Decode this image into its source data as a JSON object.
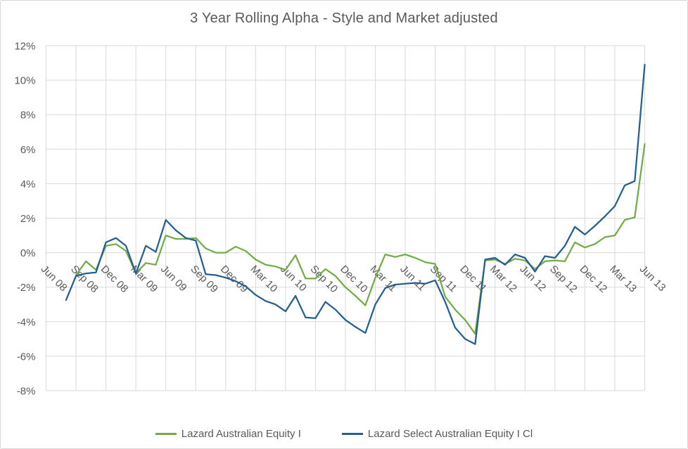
{
  "chart": {
    "title": "3 Year Rolling Alpha - Style and Market adjusted"
  },
  "legend": {
    "items": [
      {
        "label": "Lazard Australian Equity I",
        "color": "#70AD47"
      },
      {
        "label": "Lazard Select Australian Equity I Cl",
        "color": "#255E91"
      }
    ]
  },
  "chart_data": {
    "type": "line",
    "title": "3 Year Rolling Alpha - Style and Market adjusted",
    "interval": "monthly",
    "start_month": "Jun 08",
    "end_month": "Jun 13",
    "n_points": 61,
    "xtick_labels": [
      "Jun 08",
      "Sep 08",
      "Dec 08",
      "Mar 09",
      "Jun 09",
      "Sep 09",
      "Dec 09",
      "Mar 10",
      "Jun 10",
      "Sep 10",
      "Dec 10",
      "Mar 11",
      "Jun 11",
      "Sep 11",
      "Dec 11",
      "Mar 12",
      "Jun 12",
      "Sep 12",
      "Dec 12",
      "Mar 13",
      "Jun 13"
    ],
    "xticks_per_point": 3,
    "yticks": [
      12,
      10,
      8,
      6,
      4,
      2,
      0,
      -2,
      -4,
      -6,
      -8
    ],
    "ytick_suffix": "%",
    "ylim": [
      -8,
      12
    ],
    "grid": true,
    "legend_position": "bottom",
    "axis_text_color": "#595959",
    "grid_color": "#D9D9D9",
    "series": [
      {
        "name": "Lazard Australian Equity I",
        "color": "#70AD47",
        "values": [
          null,
          null,
          null,
          -1.3,
          -0.5,
          -1.0,
          0.4,
          0.5,
          0.1,
          -1.2,
          -0.6,
          -0.7,
          1.0,
          0.8,
          0.8,
          0.85,
          0.25,
          0.0,
          0.0,
          0.35,
          0.1,
          -0.4,
          -0.7,
          -0.8,
          -1.0,
          -0.15,
          -1.5,
          -1.5,
          -0.95,
          -1.35,
          -2.0,
          -2.5,
          -3.05,
          -1.45,
          -0.1,
          -0.25,
          -0.1,
          -0.3,
          -0.55,
          -0.65,
          -2.55,
          -3.3,
          -3.9,
          -4.7,
          -0.45,
          -0.4,
          -0.65,
          -0.35,
          -0.45,
          -0.95,
          -0.5,
          -0.45,
          -0.5,
          0.6,
          0.3,
          0.5,
          0.9,
          1.0,
          1.9,
          2.05,
          6.3
        ]
      },
      {
        "name": "Lazard Select Australian Equity I Cl",
        "color": "#255E91",
        "values": [
          null,
          null,
          -2.75,
          -1.35,
          -1.2,
          -1.15,
          0.6,
          0.85,
          0.4,
          -1.2,
          0.4,
          0.05,
          1.9,
          1.3,
          0.85,
          0.7,
          -1.25,
          -1.3,
          -1.45,
          -1.65,
          -1.95,
          -2.45,
          -2.8,
          -3.0,
          -3.4,
          -2.5,
          -3.75,
          -3.8,
          -2.85,
          -3.3,
          -3.9,
          -4.3,
          -4.65,
          -3.0,
          -2.05,
          -1.85,
          -1.8,
          -1.75,
          -1.8,
          -1.6,
          -2.85,
          -4.35,
          -5.0,
          -5.3,
          -0.4,
          -0.3,
          -0.7,
          -0.1,
          -0.3,
          -1.1,
          -0.2,
          -0.3,
          0.4,
          1.5,
          1.05,
          1.55,
          2.1,
          2.7,
          3.9,
          4.15,
          10.9
        ]
      }
    ]
  }
}
